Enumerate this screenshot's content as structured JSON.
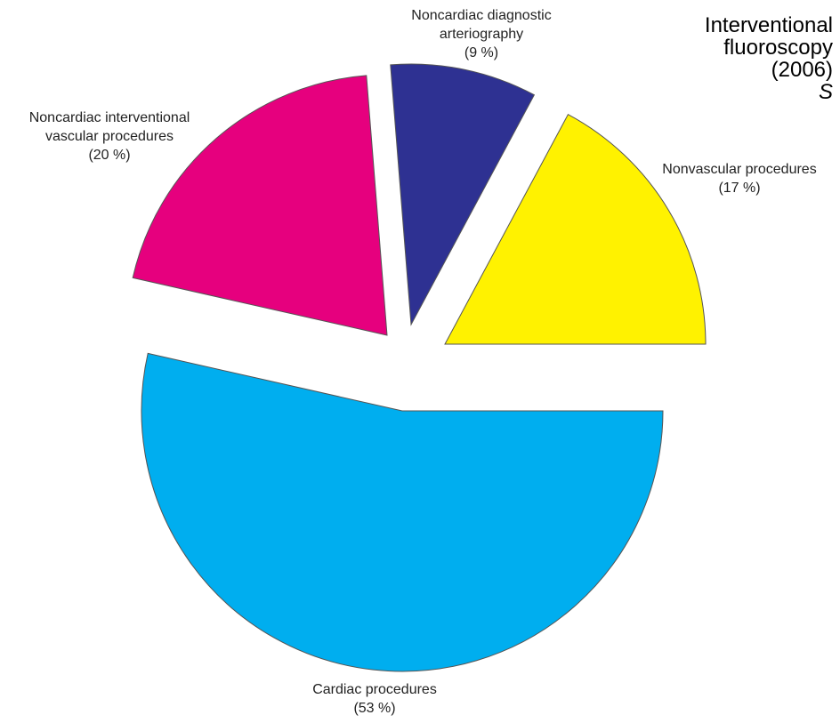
{
  "chart_data": {
    "type": "pie",
    "title_lines": [
      "Interventional",
      "fluoroscopy",
      "(2006)",
      "S"
    ],
    "exploded": true,
    "slices": [
      {
        "label_lines": [
          "Cardiac procedures"
        ],
        "pct_label": "(53 %)",
        "value": 53,
        "color": "#00aeef"
      },
      {
        "label_lines": [
          "Noncardiac interventional",
          "vascular procedures"
        ],
        "pct_label": "(20 %)",
        "value": 20,
        "color": "#e6007e"
      },
      {
        "label_lines": [
          "Noncardiac diagnostic",
          "arteriography"
        ],
        "pct_label": "(9 %)",
        "value": 9,
        "color": "#2e3192"
      },
      {
        "label_lines": [
          "Nonvascular procedures"
        ],
        "pct_label": "(17 %)",
        "value": 17,
        "color": "#fff200"
      }
    ]
  }
}
